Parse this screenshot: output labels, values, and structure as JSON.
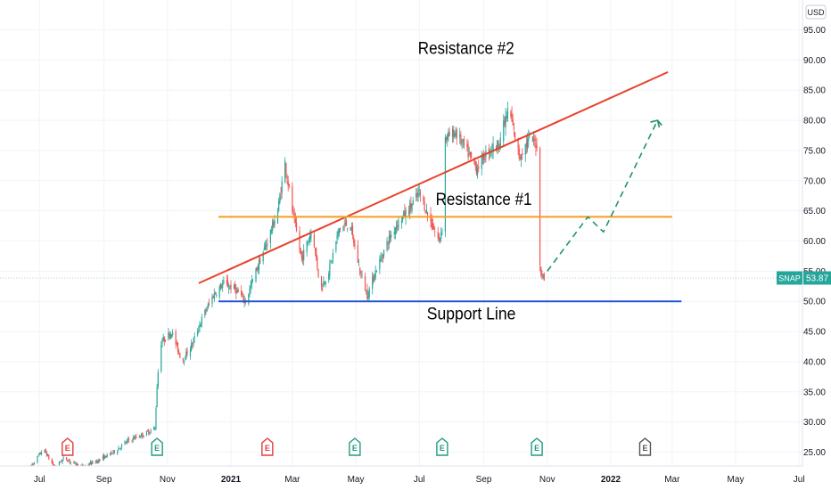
{
  "chart_data": {
    "type": "candlestick",
    "symbol": "SNAP",
    "currency": "USD",
    "last_price": "53.87",
    "y_range": [
      23,
      98
    ],
    "y_ticks": [
      "25.00",
      "30.00",
      "35.00",
      "40.00",
      "45.00",
      "50.00",
      "55.00",
      "60.00",
      "65.00",
      "70.00",
      "75.00",
      "80.00",
      "85.00",
      "90.00",
      "95.00"
    ],
    "x_ticks": [
      {
        "label": "Jul",
        "bold": false
      },
      {
        "label": "Sep",
        "bold": false
      },
      {
        "label": "Nov",
        "bold": false
      },
      {
        "label": "2021",
        "bold": true
      },
      {
        "label": "Mar",
        "bold": false
      },
      {
        "label": "May",
        "bold": false
      },
      {
        "label": "Jul",
        "bold": false
      },
      {
        "label": "Sep",
        "bold": false
      },
      {
        "label": "Nov",
        "bold": false
      },
      {
        "label": "2022",
        "bold": true
      },
      {
        "label": "Mar",
        "bold": false
      },
      {
        "label": "May",
        "bold": false
      },
      {
        "label": "Jul",
        "bold": false
      }
    ],
    "price_path": [
      [
        "2020-06-20",
        22.0
      ],
      [
        "2020-07-05",
        25.5
      ],
      [
        "2020-07-15",
        22.5
      ],
      [
        "2020-07-25",
        24.0
      ],
      [
        "2020-08-10",
        22.5
      ],
      [
        "2020-08-25",
        23.5
      ],
      [
        "2020-09-10",
        25.0
      ],
      [
        "2020-09-25",
        27.0
      ],
      [
        "2020-10-10",
        28.0
      ],
      [
        "2020-10-20",
        29.0
      ],
      [
        "2020-10-22",
        36.0
      ],
      [
        "2020-10-25",
        43.0
      ],
      [
        "2020-11-05",
        45.0
      ],
      [
        "2020-11-15",
        40.0
      ],
      [
        "2020-11-25",
        43.0
      ],
      [
        "2020-12-05",
        47.5
      ],
      [
        "2020-12-15",
        51.0
      ],
      [
        "2020-12-25",
        53.0
      ],
      [
        "2021-01-05",
        52.0
      ],
      [
        "2021-01-15",
        50.0
      ],
      [
        "2021-01-25",
        55.0
      ],
      [
        "2021-02-05",
        60.0
      ],
      [
        "2021-02-15",
        65.0
      ],
      [
        "2021-02-22",
        73.0
      ],
      [
        "2021-03-01",
        65.0
      ],
      [
        "2021-03-10",
        57.0
      ],
      [
        "2021-03-20",
        62.0
      ],
      [
        "2021-03-28",
        52.0
      ],
      [
        "2021-04-05",
        55.0
      ],
      [
        "2021-04-15",
        62.0
      ],
      [
        "2021-04-25",
        63.0
      ],
      [
        "2021-05-05",
        55.0
      ],
      [
        "2021-05-12",
        51.0
      ],
      [
        "2021-05-20",
        55.0
      ],
      [
        "2021-06-01",
        60.0
      ],
      [
        "2021-06-10",
        63.0
      ],
      [
        "2021-06-20",
        65.0
      ],
      [
        "2021-07-01",
        68.0
      ],
      [
        "2021-07-10",
        64.0
      ],
      [
        "2021-07-20",
        60.0
      ],
      [
        "2021-07-25",
        64.0
      ],
      [
        "2021-07-26",
        77.0
      ],
      [
        "2021-08-05",
        78.0
      ],
      [
        "2021-08-15",
        75.0
      ],
      [
        "2021-08-25",
        72.0
      ],
      [
        "2021-09-05",
        75.0
      ],
      [
        "2021-09-15",
        76.0
      ],
      [
        "2021-09-25",
        82.0
      ],
      [
        "2021-10-05",
        74.0
      ],
      [
        "2021-10-15",
        77.0
      ],
      [
        "2021-10-22",
        76.0
      ],
      [
        "2021-10-22",
        58.0
      ],
      [
        "2021-10-26",
        55.0
      ],
      [
        "2021-10-29",
        53.5
      ]
    ],
    "lines": [
      {
        "name": "Resistance #2",
        "color": "#e8412a",
        "from": [
          "2020-12-01",
          53
        ],
        "to": [
          "2022-02-25",
          88
        ]
      },
      {
        "name": "Resistance #1",
        "color": "#f59d1c",
        "from": [
          "2020-12-20",
          64
        ],
        "to": [
          "2022-03-01",
          64
        ]
      },
      {
        "name": "Support Line",
        "color": "#2457d6",
        "from": [
          "2020-12-20",
          50
        ],
        "to": [
          "2022-03-10",
          50
        ]
      }
    ],
    "projection": {
      "color": "#22946b",
      "points": [
        [
          "2021-11-01",
          55
        ],
        [
          "2021-12-10",
          64
        ],
        [
          "2021-12-25",
          61.5
        ],
        [
          "2022-02-15",
          80
        ],
        [
          "2022-02-20",
          79
        ]
      ]
    },
    "event_markers": [
      {
        "date": "2020-07-28",
        "label": "E",
        "color": "#e23c3c"
      },
      {
        "date": "2020-10-22",
        "label": "E",
        "color": "#1f9b7e"
      },
      {
        "date": "2021-02-05",
        "label": "E",
        "color": "#e23c3c"
      },
      {
        "date": "2021-04-30",
        "label": "E",
        "color": "#1f9b7e"
      },
      {
        "date": "2021-07-23",
        "label": "E",
        "color": "#1f9b7e"
      },
      {
        "date": "2021-10-22",
        "label": "E",
        "color": "#1f9b7e"
      },
      {
        "date": "2022-02-03",
        "label": "E",
        "color": "#555555"
      }
    ],
    "annotations": [
      {
        "text": "Resistance #2",
        "date": "2021-08-15",
        "value": 91
      },
      {
        "text": "Resistance #1",
        "date": "2021-09-01",
        "value": 66
      },
      {
        "text": "Support Line",
        "date": "2021-08-20",
        "value": 47
      }
    ]
  }
}
